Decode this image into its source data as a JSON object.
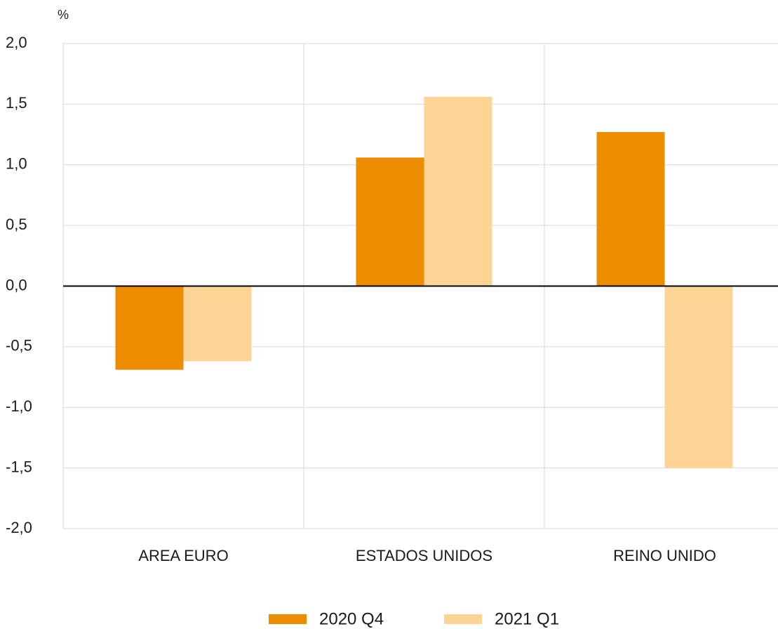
{
  "chart_data": {
    "type": "bar",
    "y_unit": "%",
    "categories": [
      "AREA EURO",
      "ESTADOS UNIDOS",
      "REINO UNIDO"
    ],
    "series": [
      {
        "name": "2020 Q4",
        "color": "#ee8c00",
        "values": [
          -0.69,
          1.06,
          1.27
        ]
      },
      {
        "name": "2021 Q1",
        "color": "#fed396",
        "values": [
          -0.62,
          1.56,
          -1.5
        ]
      }
    ],
    "ylim": [
      -2,
      2
    ],
    "yticks": [
      {
        "value": -2,
        "label": "-2,0"
      },
      {
        "value": -1.5,
        "label": "-1,5"
      },
      {
        "value": -1,
        "label": "-1,0"
      },
      {
        "value": -0.5,
        "label": "-0,5"
      },
      {
        "value": 0,
        "label": "0,0"
      },
      {
        "value": 0.5,
        "label": "0,5"
      },
      {
        "value": 1,
        "label": "1,0"
      },
      {
        "value": 1.5,
        "label": "1,5"
      },
      {
        "value": 2,
        "label": "2,0"
      }
    ],
    "grid": true,
    "legend": "bottom"
  }
}
